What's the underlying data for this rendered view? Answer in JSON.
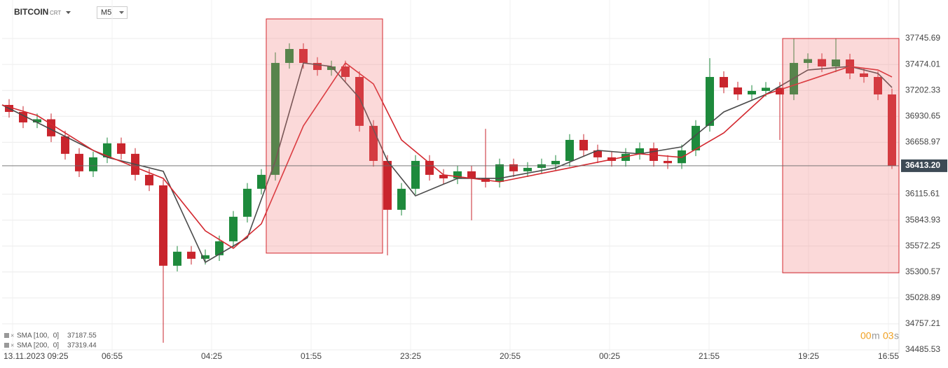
{
  "header": {
    "symbol": "BITCOIN",
    "suffix": "CRT",
    "interval": "M5"
  },
  "timer": {
    "minutes": "00",
    "m": "m",
    "seconds": "03",
    "s": "s"
  },
  "chart_data": {
    "type": "candlestick",
    "up_color": "#1e8a3c",
    "down_color": "#c9252d",
    "xlim": [
      0,
      64
    ],
    "ylim": [
      34449,
      38149
    ],
    "xticks": [
      {
        "value": 0.75,
        "label": "13.11.2023  09:25"
      },
      {
        "value": 7.85,
        "label": "06:55"
      },
      {
        "value": 14.95,
        "label": "04:25"
      },
      {
        "value": 22.05,
        "label": "01:55"
      },
      {
        "value": 29.15,
        "label": "23:25"
      },
      {
        "value": 36.25,
        "label": "20:55"
      },
      {
        "value": 43.35,
        "label": "00:25"
      },
      {
        "value": 50.45,
        "label": "21:55"
      },
      {
        "value": 57.55,
        "label": "19:25"
      },
      {
        "value": 63.25,
        "label": "16:55"
      }
    ],
    "yticks": [
      37745.69,
      37474.01,
      37202.33,
      36930.65,
      36658.97,
      36115.61,
      35843.93,
      35572.25,
      35300.57,
      35028.89,
      34757.21,
      34485.53
    ],
    "grid": true,
    "current_price": {
      "value": 36413.2,
      "label": "36413.20"
    },
    "open": [
      37050,
      36977,
      36867,
      36900,
      36721,
      36538,
      36355,
      36501,
      36648,
      36538,
      36318,
      36208,
      35366,
      35513,
      35439,
      35476,
      35622,
      35879,
      36172,
      36318,
      37490,
      37636,
      37490,
      37416,
      37453,
      37343,
      36831,
      36464,
      35952,
      36172,
      36464,
      36318,
      36281,
      36355,
      36281,
      36245,
      36428,
      36355,
      36391,
      36428,
      36464,
      36684,
      36574,
      36501,
      36464,
      36538,
      36596,
      36464,
      36440,
      36574,
      36831,
      37343,
      37233,
      37160,
      37197,
      37230,
      37160,
      37490,
      37530,
      37453,
      37526,
      37380,
      37343,
      37160
    ],
    "high": [
      37110,
      37037,
      36960,
      36960,
      36781,
      36598,
      36561,
      36708,
      36708,
      36598,
      36378,
      36268,
      35573,
      35573,
      35536,
      35682,
      35939,
      36232,
      36378,
      37600,
      37696,
      37696,
      37550,
      37513,
      37513,
      37403,
      36891,
      36524,
      36232,
      36524,
      36524,
      36378,
      36415,
      36415,
      36800,
      36488,
      36488,
      36451,
      36488,
      36524,
      36744,
      36744,
      36634,
      36561,
      36598,
      36656,
      36656,
      36524,
      36634,
      36891,
      37540,
      37403,
      37293,
      37257,
      37290,
      37290,
      37750,
      37590,
      37590,
      37750,
      37586,
      37440,
      37403,
      37220
    ],
    "low": [
      36917,
      36807,
      36807,
      36661,
      36478,
      36295,
      36295,
      36441,
      36478,
      36258,
      36148,
      34560,
      35306,
      35379,
      35379,
      35416,
      35562,
      35819,
      36112,
      36258,
      37430,
      37430,
      37356,
      37356,
      37283,
      36771,
      36404,
      35475,
      35892,
      36112,
      36258,
      36221,
      36221,
      35842,
      36185,
      36185,
      36295,
      36295,
      36331,
      36368,
      36404,
      36514,
      36441,
      36404,
      36404,
      36478,
      36404,
      36380,
      36380,
      36514,
      36771,
      37173,
      37100,
      37100,
      37137,
      36684,
      37100,
      37430,
      37393,
      37393,
      37320,
      37283,
      37100,
      36380
    ],
    "close": [
      36977,
      36867,
      36900,
      36721,
      36538,
      36355,
      36501,
      36648,
      36538,
      36318,
      36208,
      35366,
      35513,
      35439,
      35476,
      35622,
      35879,
      36172,
      36318,
      37490,
      37636,
      37490,
      37416,
      37453,
      37343,
      36831,
      36464,
      35952,
      36172,
      36464,
      36318,
      36281,
      36355,
      36281,
      36245,
      36428,
      36355,
      36391,
      36428,
      36464,
      36684,
      36574,
      36501,
      36464,
      36538,
      36596,
      36464,
      36440,
      36574,
      36831,
      37343,
      37233,
      37160,
      37197,
      37230,
      37160,
      37490,
      37530,
      37453,
      37526,
      37380,
      37343,
      37160,
      36413.2
    ],
    "series": [
      {
        "name": "SMA [100,  0]",
        "legend_value": 37187.55,
        "color": "#4a4a4a",
        "x": [
          0,
          2.5,
          7.5,
          11.5,
          14.5,
          17.5,
          19.5,
          21.5,
          23.5,
          25.5,
          27.5,
          29.5,
          32.5,
          35.5,
          39.5,
          42.5,
          45.5,
          48.5,
          51.5,
          54.5,
          57.5,
          60.5,
          62.5,
          63.5
        ],
        "values": [
          37050,
          36867,
          36501,
          36355,
          35402,
          35659,
          36464,
          37490,
          37453,
          37123,
          36464,
          36098,
          36281,
          36281,
          36391,
          36574,
          36538,
          36611,
          36977,
          37160,
          37416,
          37453,
          37380,
          37233
        ]
      },
      {
        "name": "SMA [200,  0]",
        "legend_value": 37319.44,
        "color": "#d3282f",
        "x": [
          0,
          2.5,
          6.5,
          11.5,
          14.5,
          16.5,
          18.5,
          21.5,
          24.5,
          26.5,
          28.5,
          31.5,
          35.5,
          40.5,
          45.5,
          48.5,
          51.5,
          54.5,
          57.5,
          60.5,
          62.5,
          63.5
        ],
        "values": [
          37050,
          36940,
          36574,
          36281,
          35732,
          35549,
          35805,
          36831,
          37490,
          37270,
          36684,
          36318,
          36245,
          36391,
          36538,
          36501,
          36757,
          37160,
          37306,
          37453,
          37416,
          37343
        ]
      }
    ],
    "highlights": [
      {
        "x": [
          18.85,
          27.15
        ],
        "y": [
          35498,
          37951
        ]
      },
      {
        "x": [
          55.7,
          64
        ],
        "y": [
          35292,
          37745.69
        ]
      }
    ]
  }
}
